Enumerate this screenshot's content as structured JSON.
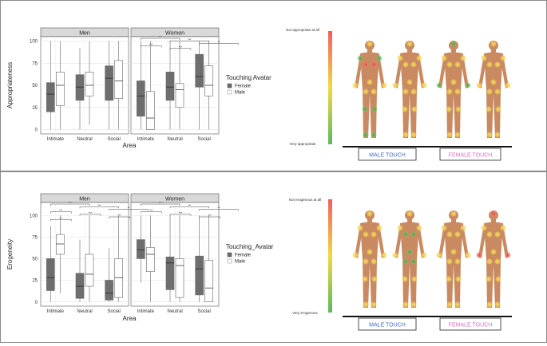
{
  "chart_data": [
    {
      "type": "boxplot",
      "facets": [
        "Men",
        "Women"
      ],
      "categories": [
        "Intimate",
        "Neutral",
        "Social"
      ],
      "xlabel": "Area",
      "ylabel": "Appropriateness",
      "yticks": [
        0,
        25,
        50,
        75,
        100
      ],
      "ylim": [
        -5,
        105
      ],
      "legend": {
        "title": "Touching Avatar",
        "position": "right",
        "entries": [
          "Female",
          "Male"
        ]
      },
      "series_colors": {
        "Female": "#6e6e6e",
        "Male": "#ffffff"
      },
      "significance": {
        "Men": [],
        "Women": [
          "***",
          "***",
          "**",
          "***",
          "***"
        ]
      },
      "boxes": [
        {
          "facet": "Men",
          "category": "Intimate",
          "series": "Female",
          "min": 0,
          "q1": 20,
          "median": 40,
          "q3": 53,
          "max": 100
        },
        {
          "facet": "Men",
          "category": "Intimate",
          "series": "Male",
          "min": 0,
          "q1": 27,
          "median": 50,
          "q3": 65,
          "max": 100
        },
        {
          "facet": "Men",
          "category": "Neutral",
          "series": "Female",
          "min": 0,
          "q1": 33,
          "median": 48,
          "q3": 62,
          "max": 92
        },
        {
          "facet": "Men",
          "category": "Neutral",
          "series": "Male",
          "min": 5,
          "q1": 38,
          "median": 50,
          "q3": 65,
          "max": 100
        },
        {
          "facet": "Men",
          "category": "Social",
          "series": "Female",
          "min": 0,
          "q1": 33,
          "median": 58,
          "q3": 72,
          "max": 100
        },
        {
          "facet": "Men",
          "category": "Social",
          "series": "Male",
          "min": 0,
          "q1": 35,
          "median": 55,
          "q3": 78,
          "max": 100
        },
        {
          "facet": "Women",
          "category": "Intimate",
          "series": "Female",
          "min": 0,
          "q1": 15,
          "median": 38,
          "q3": 55,
          "max": 100
        },
        {
          "facet": "Women",
          "category": "Intimate",
          "series": "Male",
          "min": 0,
          "q1": 0,
          "median": 13,
          "q3": 43,
          "max": 100
        },
        {
          "facet": "Women",
          "category": "Neutral",
          "series": "Female",
          "min": 0,
          "q1": 33,
          "median": 48,
          "q3": 65,
          "max": 100
        },
        {
          "facet": "Women",
          "category": "Neutral",
          "series": "Male",
          "min": 0,
          "q1": 25,
          "median": 45,
          "q3": 52,
          "max": 100
        },
        {
          "facet": "Women",
          "category": "Social",
          "series": "Female",
          "min": 0,
          "q1": 48,
          "median": 60,
          "q3": 85,
          "max": 100
        },
        {
          "facet": "Women",
          "category": "Social",
          "series": "Male",
          "min": 0,
          "q1": 38,
          "median": 50,
          "q3": 72,
          "max": 100
        }
      ],
      "heatmap": {
        "scale_top": "Not appropriate at all",
        "scale_bottom": "Very appropriate",
        "groups": [
          "MALE TOUCH",
          "FEMALE TOUCH"
        ],
        "group_colors": [
          "#3f6fb5",
          "#d070c8"
        ]
      }
    },
    {
      "type": "boxplot",
      "facets": [
        "Men",
        "Women"
      ],
      "categories": [
        "Intimate",
        "Neutral",
        "Social"
      ],
      "xlabel": "Area",
      "ylabel": "Erogeneity",
      "yticks": [
        0,
        25,
        50,
        75,
        100
      ],
      "ylim": [
        -5,
        115
      ],
      "legend": {
        "title": "Touching_Avatar",
        "position": "right",
        "entries": [
          "Female",
          "Male"
        ]
      },
      "series_colors": {
        "Female": "#6e6e6e",
        "Male": "#ffffff"
      },
      "significance": {
        "Men": [
          "***",
          "***",
          "**",
          "***",
          "***",
          "***",
          "**"
        ],
        "Women": [
          "***",
          "***",
          "**",
          "***",
          "***",
          "***"
        ]
      },
      "boxes": [
        {
          "facet": "Men",
          "category": "Intimate",
          "series": "Female",
          "min": 0,
          "q1": 13,
          "median": 28,
          "q3": 50,
          "max": 88
        },
        {
          "facet": "Men",
          "category": "Intimate",
          "series": "Male",
          "min": 10,
          "q1": 55,
          "median": 67,
          "q3": 78,
          "max": 100
        },
        {
          "facet": "Men",
          "category": "Neutral",
          "series": "Female",
          "min": 0,
          "q1": 4,
          "median": 18,
          "q3": 33,
          "max": 72
        },
        {
          "facet": "Men",
          "category": "Neutral",
          "series": "Male",
          "min": 0,
          "q1": 18,
          "median": 32,
          "q3": 55,
          "max": 100
        },
        {
          "facet": "Men",
          "category": "Social",
          "series": "Female",
          "min": 0,
          "q1": 2,
          "median": 10,
          "q3": 25,
          "max": 62
        },
        {
          "facet": "Men",
          "category": "Social",
          "series": "Male",
          "min": 0,
          "q1": 5,
          "median": 28,
          "q3": 50,
          "max": 100
        },
        {
          "facet": "Women",
          "category": "Intimate",
          "series": "Female",
          "min": 22,
          "q1": 50,
          "median": 60,
          "q3": 72,
          "max": 100
        },
        {
          "facet": "Women",
          "category": "Intimate",
          "series": "Male",
          "min": 0,
          "q1": 35,
          "median": 55,
          "q3": 63,
          "max": 100
        },
        {
          "facet": "Women",
          "category": "Neutral",
          "series": "Female",
          "min": 0,
          "q1": 14,
          "median": 45,
          "q3": 52,
          "max": 100
        },
        {
          "facet": "Women",
          "category": "Neutral",
          "series": "Male",
          "min": 0,
          "q1": 5,
          "median": 42,
          "q3": 50,
          "max": 100
        },
        {
          "facet": "Women",
          "category": "Social",
          "series": "Female",
          "min": 0,
          "q1": 8,
          "median": 38,
          "q3": 53,
          "max": 100
        },
        {
          "facet": "Women",
          "category": "Social",
          "series": "Male",
          "min": 0,
          "q1": 0,
          "median": 16,
          "q3": 48,
          "max": 100
        }
      ],
      "heatmap": {
        "scale_top": "Not erogenous at all",
        "scale_bottom": "Very erogenous",
        "groups": [
          "MALE TOUCH",
          "FEMALE TOUCH"
        ],
        "group_colors": [
          "#3f6fb5",
          "#d070c8"
        ]
      }
    }
  ]
}
